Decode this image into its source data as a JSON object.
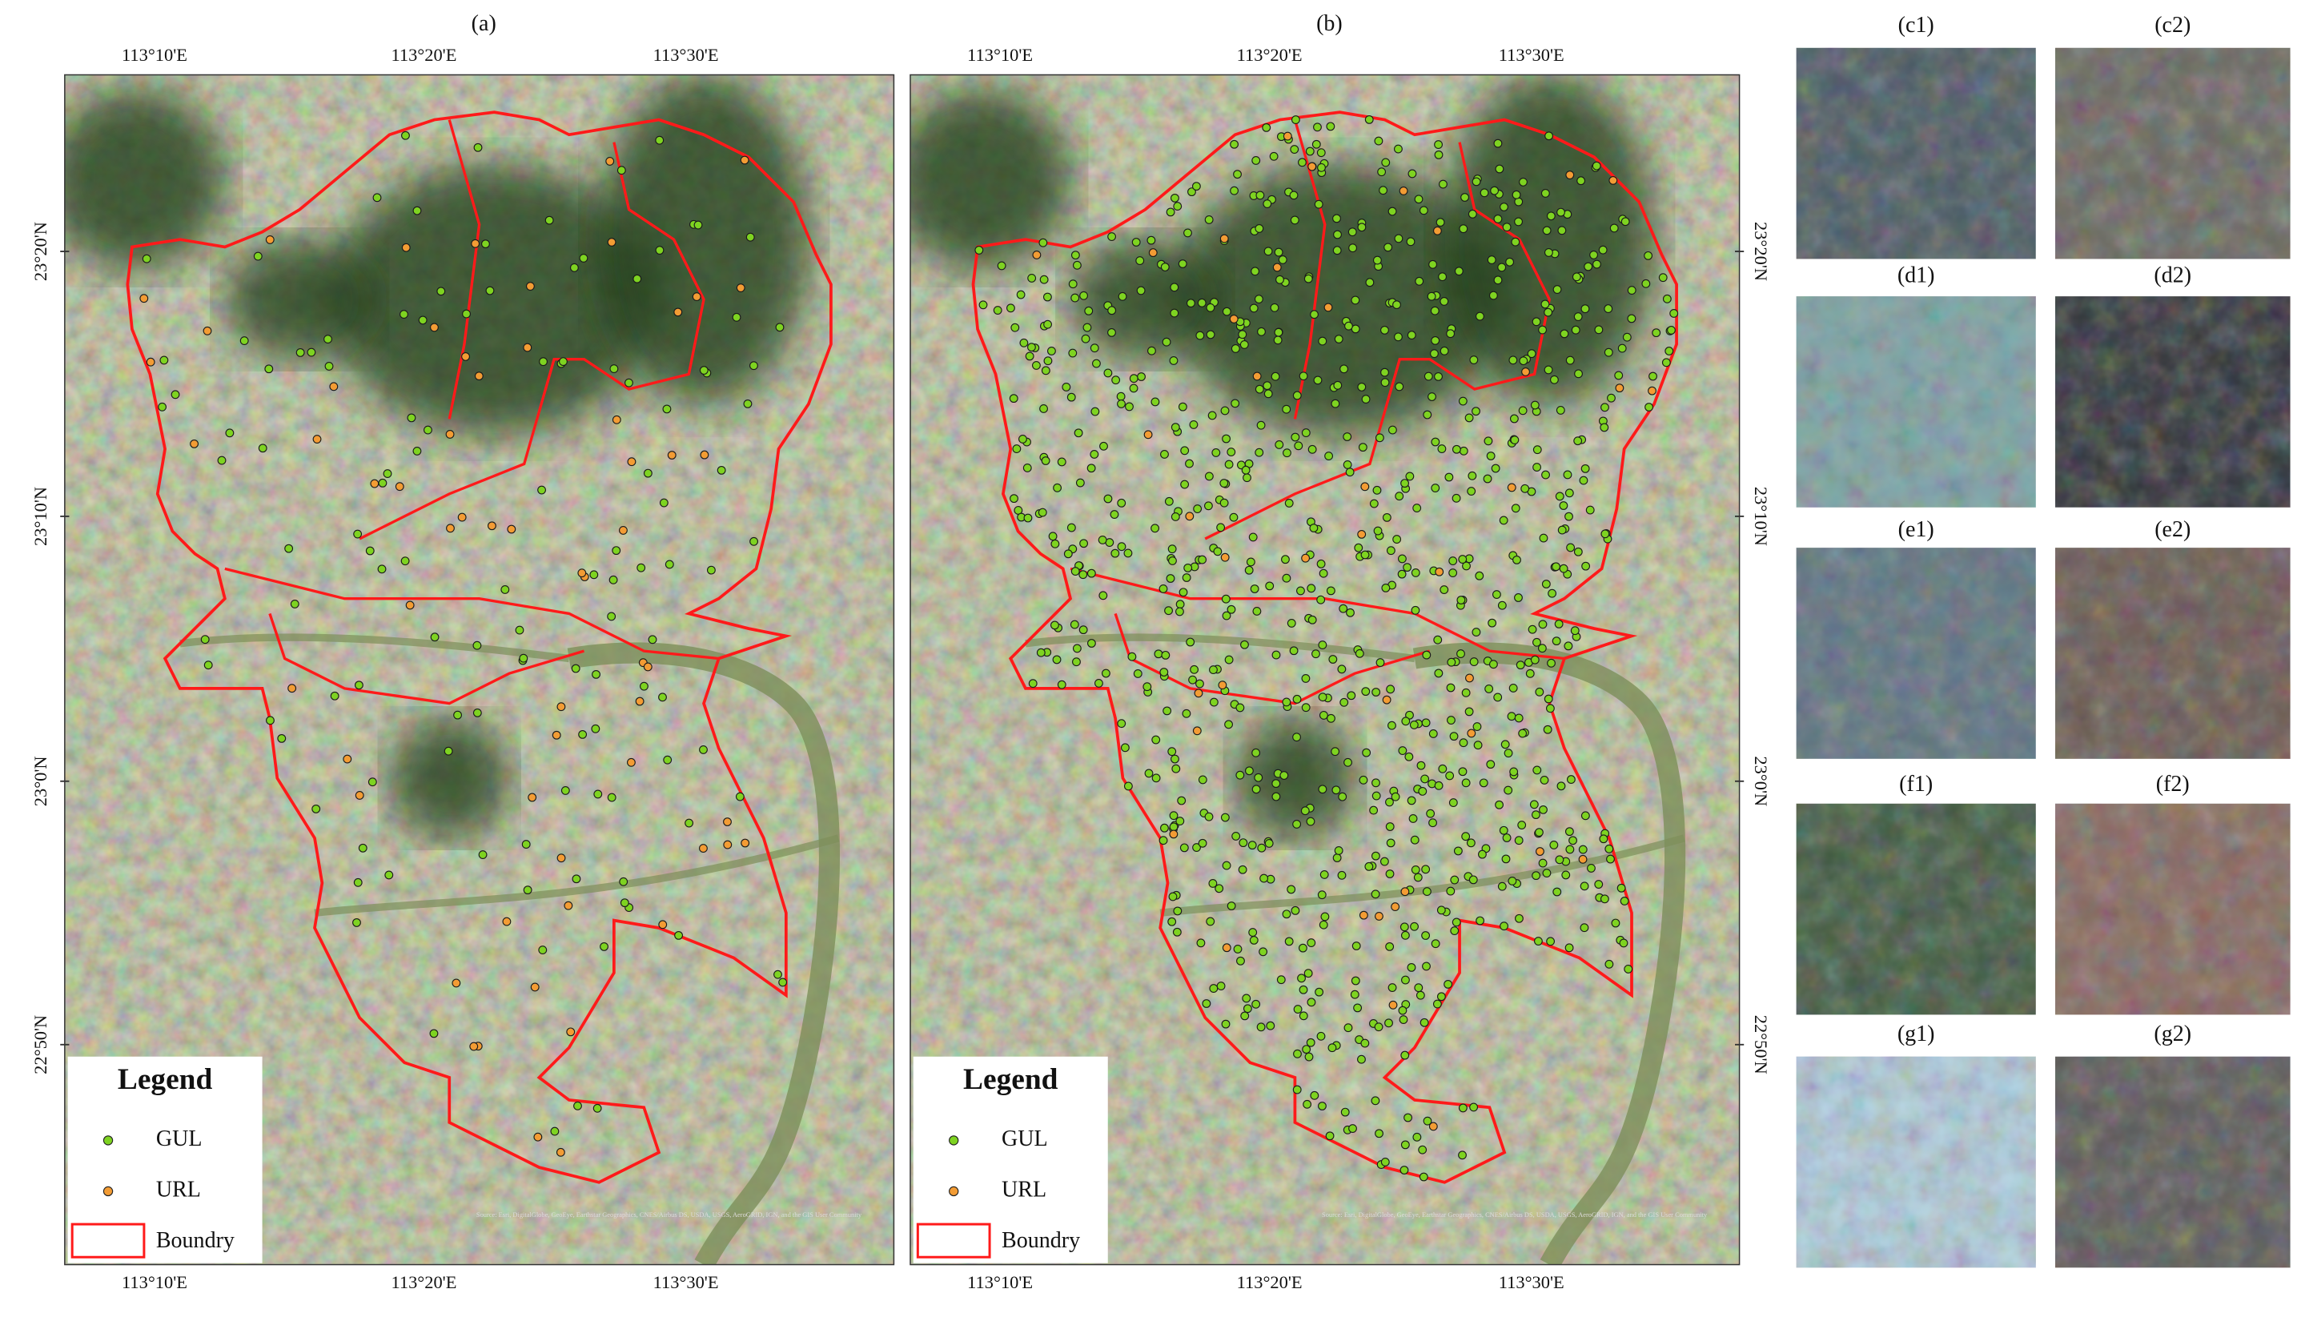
{
  "panels": [
    {
      "label": "(a)"
    },
    {
      "label": "(b)"
    }
  ],
  "lon_labels": [
    "113°10'E",
    "113°20'E",
    "113°30'E"
  ],
  "lat_labels": [
    "23°20'N",
    "23°10'N",
    "23°0'N",
    "22°50'N"
  ],
  "legend": {
    "title": "Legend",
    "items": [
      {
        "label": "GUL",
        "color": "#7ed321"
      },
      {
        "label": "URL",
        "color": "#f39c34"
      },
      {
        "label": "Boundry",
        "color": "#ff1a1a"
      }
    ]
  },
  "attribution": "Source: Esri, DigitalGlobe, GeoEye, Earthstar Geographics, CNES/Airbus DS, USDA, USGS, AeroGRID, IGN, and the GIS User Community",
  "thumbnails": [
    {
      "label": "(c1)"
    },
    {
      "label": "(c2)"
    },
    {
      "label": "(d1)"
    },
    {
      "label": "(d2)"
    },
    {
      "label": "(e1)"
    },
    {
      "label": "(e2)"
    },
    {
      "label": "(f1)"
    },
    {
      "label": "(f2)"
    },
    {
      "label": "(g1)"
    },
    {
      "label": "(g2)"
    }
  ]
}
